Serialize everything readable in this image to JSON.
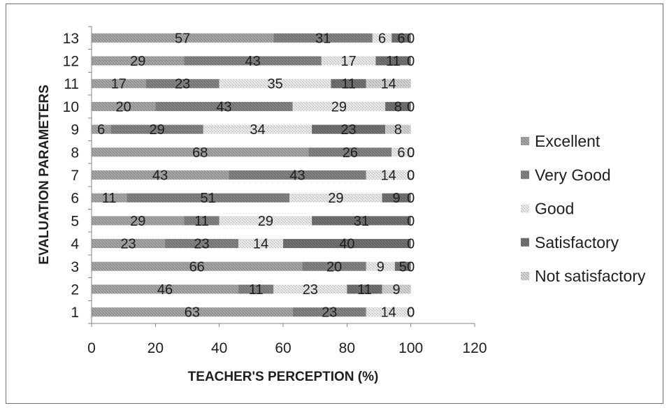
{
  "chart_data": {
    "type": "bar",
    "orientation": "horizontal",
    "stacked": true,
    "categories": [
      "1",
      "2",
      "3",
      "4",
      "5",
      "6",
      "7",
      "8",
      "9",
      "10",
      "11",
      "12",
      "13"
    ],
    "series": [
      {
        "name": "Excellent",
        "color": "#9e9e9e",
        "values": [
          63,
          46,
          66,
          23,
          29,
          11,
          43,
          68,
          6,
          20,
          17,
          29,
          57
        ]
      },
      {
        "name": "Very Good",
        "color": "#7d7d7d",
        "values": [
          23,
          11,
          20,
          23,
          11,
          51,
          43,
          26,
          29,
          43,
          23,
          43,
          31
        ]
      },
      {
        "name": "Good",
        "color": "#e4e4e4",
        "values": [
          14,
          23,
          9,
          14,
          29,
          29,
          14,
          6,
          34,
          29,
          35,
          17,
          6
        ]
      },
      {
        "name": "Satisfactory",
        "color": "#6c6c6c",
        "values": [
          0,
          11,
          5,
          40,
          31,
          9,
          0,
          0,
          23,
          8,
          11,
          11,
          6
        ]
      },
      {
        "name": "Not satisfactory",
        "color": "#cbcbcb",
        "values": [
          0,
          9,
          0,
          0,
          0,
          0,
          0,
          0,
          8,
          0,
          14,
          0,
          0
        ]
      }
    ],
    "xlabel": "TEACHER'S PERCEPTION (%)",
    "ylabel": "EVALUATION PARAMETERS",
    "xlim": [
      0,
      120
    ],
    "xticks": [
      0,
      20,
      40,
      60,
      80,
      100,
      120
    ],
    "data_labels": true,
    "legend": "right",
    "grid": false
  }
}
